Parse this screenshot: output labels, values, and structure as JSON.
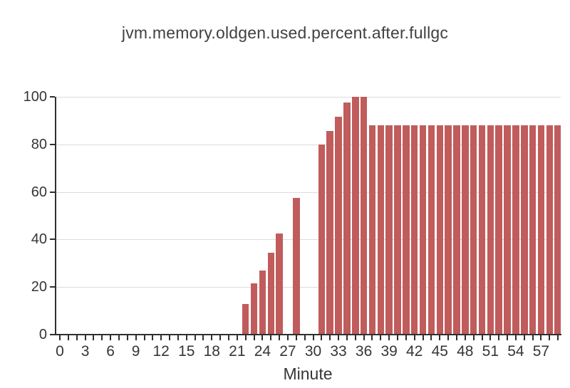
{
  "chart_data": {
    "type": "bar",
    "title": "jvm.memory.oldgen.used.percent.after.fullgc",
    "xlabel": "Minute",
    "ylabel": "",
    "x": [
      22,
      23,
      24,
      25,
      26,
      28,
      31,
      32,
      33,
      34,
      35,
      36,
      37,
      38,
      39,
      40,
      41,
      42,
      43,
      44,
      45,
      46,
      47,
      48,
      49,
      50,
      51,
      52,
      53,
      54,
      55,
      56,
      57,
      58,
      59
    ],
    "values": [
      13,
      21.5,
      27,
      34.5,
      42.5,
      57.5,
      80,
      85.5,
      91.5,
      97.5,
      100,
      100,
      88,
      88,
      88,
      88,
      88,
      88,
      88,
      88,
      88,
      88,
      88,
      88,
      88,
      88,
      88,
      88,
      88,
      88,
      88,
      88,
      88,
      88,
      88
    ],
    "xlim": [
      -0.5,
      59.5
    ],
    "ylim": [
      0,
      100
    ],
    "y_ticks": [
      0,
      20,
      40,
      60,
      80,
      100
    ],
    "x_tick_minutes_start": 0,
    "x_tick_minutes_end": 59,
    "x_tick_label_values": [
      0,
      3,
      6,
      9,
      12,
      15,
      18,
      21,
      24,
      27,
      30,
      33,
      36,
      39,
      42,
      45,
      48,
      51,
      54,
      57
    ],
    "legend": "none",
    "grid": "horizontal",
    "bar_color": "#c05c5c",
    "grid_color": "#dcdcdc",
    "axis_color": "#2f2f2f",
    "text_color": "#363636",
    "title_color": "#414141",
    "background_color": "#ffffff"
  }
}
